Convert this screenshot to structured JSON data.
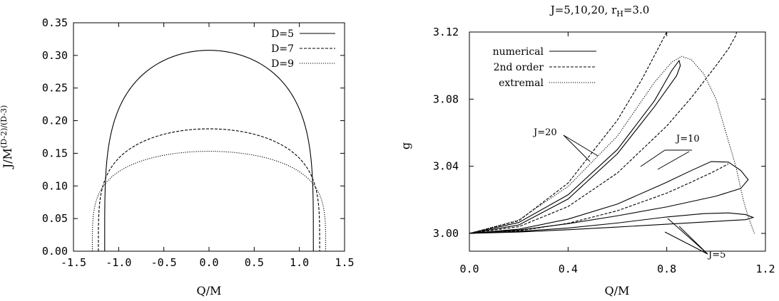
{
  "chart_data": [
    {
      "type": "line",
      "title": "",
      "xlabel": "Q/M",
      "ylabel_main": "J/M",
      "ylabel_sup": "(D-2)/(D-3)",
      "xlim": [
        -1.5,
        1.5
      ],
      "ylim": [
        0,
        0.35
      ],
      "xticks": [
        "-1.5",
        "-1.0",
        "-0.5",
        "0.0",
        "0.5",
        "1.0",
        "1.5"
      ],
      "yticks": [
        "0.00",
        "0.05",
        "0.10",
        "0.15",
        "0.20",
        "0.25",
        "0.30",
        "0.35"
      ],
      "legend_position": "top-right",
      "series": [
        {
          "name": "D=5",
          "style": "solid",
          "x_edge": 1.1547,
          "y_max": 0.3078,
          "shape": 0.5
        },
        {
          "name": "D=7",
          "style": "dashed",
          "x_edge": 1.2247,
          "y_max": 0.1875,
          "shape": 0.5
        },
        {
          "name": "D=9",
          "style": "dotted",
          "x_edge": 1.291,
          "y_max": 0.1531,
          "shape": 0.5
        }
      ]
    },
    {
      "type": "line",
      "title": "J=5,10,20, r",
      "title_sub": "H",
      "title_tail": "=3.0",
      "xlabel": "Q/M",
      "ylabel": "g",
      "xlim": [
        0,
        1.2
      ],
      "ylim": [
        2.99,
        3.12
      ],
      "xticks": [
        "0.0",
        "0.4",
        "0.8",
        "1.2"
      ],
      "yticks": [
        "3.00",
        "3.04",
        "3.08",
        "3.12"
      ],
      "legend_position": "top-left",
      "legend": [
        "numerical",
        "2nd order",
        "extremal"
      ],
      "annotations": [
        "J=20",
        "J=10",
        "J=5"
      ],
      "series": [
        {
          "name": "J=5 numerical",
          "style": "solid",
          "points": [
            [
              0,
              3.0
            ],
            [
              0.2,
              3.0012
            ],
            [
              0.4,
              3.0032
            ],
            [
              0.6,
              3.0062
            ],
            [
              0.8,
              3.0098
            ],
            [
              0.95,
              3.0118
            ],
            [
              1.05,
              3.0122
            ],
            [
              1.12,
              3.0112
            ],
            [
              1.15,
              3.0095
            ],
            [
              1.12,
              3.0082
            ],
            [
              1.0,
              3.0072
            ],
            [
              0.8,
              3.0055
            ],
            [
              0.6,
              3.0038
            ],
            [
              0.4,
              3.0022
            ],
            [
              0.2,
              3.0008
            ],
            [
              0,
              3.0
            ]
          ]
        },
        {
          "name": "J=5 2nd order",
          "style": "dashed",
          "points": [
            [
              0,
              3.0
            ],
            [
              0.2,
              3.0015
            ],
            [
              0.4,
              3.006
            ],
            [
              0.6,
              3.0135
            ],
            [
              0.8,
              3.024
            ],
            [
              0.9,
              3.0306
            ],
            [
              1.0,
              3.0375
            ],
            [
              1.05,
              3.0415
            ]
          ]
        },
        {
          "name": "J=10 numerical",
          "style": "solid",
          "points": [
            [
              0,
              3.0
            ],
            [
              0.2,
              3.0025
            ],
            [
              0.4,
              3.0085
            ],
            [
              0.6,
              3.0175
            ],
            [
              0.8,
              3.0305
            ],
            [
              0.9,
              3.0375
            ],
            [
              0.98,
              3.0428
            ],
            [
              1.05,
              3.0425
            ],
            [
              1.1,
              3.0375
            ],
            [
              1.13,
              3.032
            ],
            [
              1.1,
              3.0268
            ],
            [
              1.0,
              3.0222
            ],
            [
              0.8,
              3.0158
            ],
            [
              0.6,
              3.0105
            ],
            [
              0.4,
              3.0058
            ],
            [
              0.2,
              3.002
            ],
            [
              0,
              3.0
            ]
          ]
        },
        {
          "name": "J=10 2nd order",
          "style": "dashed",
          "points": [
            [
              0,
              3.0
            ],
            [
              0.2,
              3.004
            ],
            [
              0.4,
              3.016
            ],
            [
              0.6,
              3.036
            ],
            [
              0.8,
              3.064
            ],
            [
              0.9,
              3.081
            ],
            [
              1.0,
              3.1
            ],
            [
              1.05,
              3.11
            ],
            [
              1.08,
              3.118
            ],
            [
              1.083,
              3.12
            ]
          ]
        },
        {
          "name": "J=20 numerical",
          "style": "solid",
          "points": [
            [
              0,
              3.0
            ],
            [
              0.2,
              3.0065
            ],
            [
              0.4,
              3.023
            ],
            [
              0.6,
              3.05
            ],
            [
              0.75,
              3.079
            ],
            [
              0.82,
              3.097
            ],
            [
              0.85,
              3.103
            ],
            [
              0.855,
              3.1
            ],
            [
              0.84,
              3.094
            ],
            [
              0.75,
              3.0755
            ],
            [
              0.6,
              3.0475
            ],
            [
              0.4,
              3.0205
            ],
            [
              0.2,
              3.005
            ],
            [
              0,
              3.0
            ]
          ]
        },
        {
          "name": "J=20 2nd order",
          "style": "dashed",
          "points": [
            [
              0,
              3.0
            ],
            [
              0.2,
              3.0075
            ],
            [
              0.4,
              3.03
            ],
            [
              0.6,
              3.0675
            ],
            [
              0.7,
              3.092
            ],
            [
              0.8,
              3.12
            ]
          ]
        },
        {
          "name": "extremal",
          "style": "dotted",
          "points": [
            [
              0,
              3.0
            ],
            [
              0.2,
              3.008
            ],
            [
              0.4,
              3.028
            ],
            [
              0.6,
              3.058
            ],
            [
              0.75,
              3.09
            ],
            [
              0.82,
              3.102
            ],
            [
              0.86,
              3.1055
            ],
            [
              0.9,
              3.1035
            ],
            [
              0.95,
              3.095
            ],
            [
              1.0,
              3.08
            ],
            [
              1.04,
              3.06
            ],
            [
              1.08,
              3.04
            ],
            [
              1.11,
              3.02
            ],
            [
              1.13,
              3.01
            ],
            [
              1.155,
              3.0
            ]
          ]
        }
      ]
    }
  ]
}
